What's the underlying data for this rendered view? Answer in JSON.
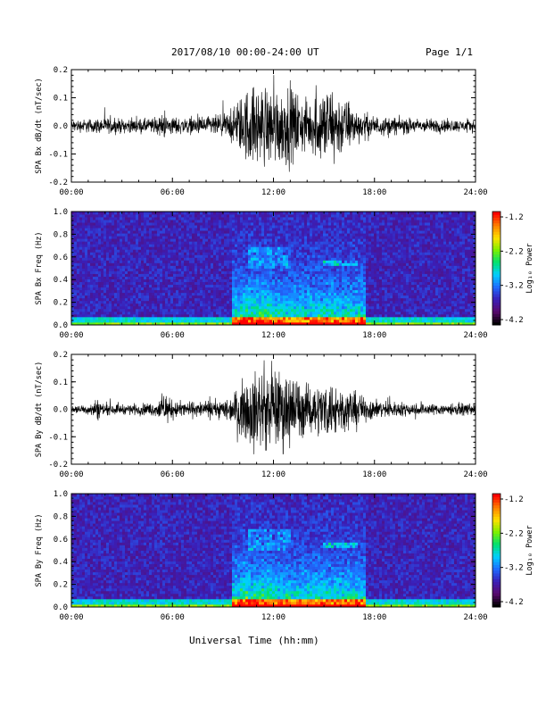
{
  "header": {
    "title": "2017/08/10  00:00-24:00 UT",
    "page": "Page 1/1"
  },
  "footer": {
    "xlabel": "Universal Time (hh:mm)"
  },
  "colors": {
    "background": "#ffffff",
    "axis": "#000000",
    "waveform": "#000000",
    "colormap": [
      "#000000",
      "#5a0a6e",
      "#3a1fb8",
      "#1f6cff",
      "#00d0ff",
      "#00e070",
      "#7cf000",
      "#ffe000",
      "#ff8000",
      "#ff0000"
    ]
  },
  "chart_data": [
    {
      "type": "line",
      "title": "",
      "ylabel": "SPA Bx dB/dt (nT/sec)",
      "xlabel": "",
      "xlim": [
        0,
        24
      ],
      "ylim": [
        -0.2,
        0.2
      ],
      "x_ticks": [
        "00:00",
        "06:00",
        "12:00",
        "18:00",
        "24:00"
      ],
      "y_ticks": [
        "-0.2",
        "-0.1",
        "0.0",
        "0.1",
        "0.2"
      ],
      "envelope": {
        "x": [
          0,
          1,
          2,
          3,
          4,
          5,
          5.5,
          6,
          7,
          8,
          9,
          9.5,
          10,
          10.5,
          11,
          12,
          13,
          13.5,
          14,
          15,
          15.5,
          16,
          17,
          18,
          19,
          20,
          21,
          22,
          23,
          24
        ],
        "amplitude": [
          0.03,
          0.035,
          0.04,
          0.035,
          0.035,
          0.04,
          0.06,
          0.045,
          0.04,
          0.045,
          0.06,
          0.08,
          0.14,
          0.2,
          0.2,
          0.2,
          0.2,
          0.16,
          0.12,
          0.2,
          0.2,
          0.16,
          0.08,
          0.05,
          0.045,
          0.04,
          0.035,
          0.035,
          0.03,
          0.03
        ]
      }
    },
    {
      "type": "heatmap",
      "title": "",
      "ylabel": "SPA Bx Freq (Hz)",
      "xlabel": "",
      "xlim": [
        0,
        24
      ],
      "ylim": [
        0.0,
        1.0
      ],
      "x_ticks": [
        "00:00",
        "06:00",
        "12:00",
        "18:00",
        "24:00"
      ],
      "y_ticks": [
        "0.0",
        "0.2",
        "0.4",
        "0.6",
        "0.8",
        "1.0"
      ],
      "colorbar": {
        "label": "Log₁₀ Power",
        "range": [
          -4.2,
          -1.2
        ],
        "ticks": [
          "-1.2",
          "-2.2",
          "-3.2",
          "-4.2"
        ]
      }
    },
    {
      "type": "line",
      "title": "",
      "ylabel": "SPA By dB/dt (nT/sec)",
      "xlabel": "",
      "xlim": [
        0,
        24
      ],
      "ylim": [
        -0.2,
        0.2
      ],
      "x_ticks": [
        "00:00",
        "06:00",
        "12:00",
        "18:00",
        "24:00"
      ],
      "y_ticks": [
        "-0.2",
        "-0.1",
        "0.0",
        "0.1",
        "0.2"
      ],
      "envelope": {
        "x": [
          0,
          1,
          1.5,
          2,
          3,
          4,
          5,
          5.5,
          6,
          7,
          8,
          9,
          9.5,
          10,
          10.5,
          11,
          12,
          13,
          13.5,
          14,
          15,
          15.5,
          16,
          17,
          18,
          19,
          20,
          21,
          22,
          23,
          24
        ],
        "amplitude": [
          0.02,
          0.025,
          0.06,
          0.03,
          0.025,
          0.03,
          0.035,
          0.08,
          0.045,
          0.04,
          0.04,
          0.05,
          0.07,
          0.12,
          0.18,
          0.2,
          0.2,
          0.2,
          0.16,
          0.12,
          0.14,
          0.15,
          0.12,
          0.08,
          0.05,
          0.04,
          0.035,
          0.03,
          0.03,
          0.03,
          0.03
        ]
      }
    },
    {
      "type": "heatmap",
      "title": "",
      "ylabel": "SPA By Freq (Hz)",
      "xlabel": "",
      "xlim": [
        0,
        24
      ],
      "ylim": [
        0.0,
        1.0
      ],
      "x_ticks": [
        "00:00",
        "06:00",
        "12:00",
        "18:00",
        "24:00"
      ],
      "y_ticks": [
        "0.0",
        "0.2",
        "0.4",
        "0.6",
        "0.8",
        "1.0"
      ],
      "colorbar": {
        "label": "Log₁₀ Power",
        "range": [
          -4.2,
          -1.2
        ],
        "ticks": [
          "-1.2",
          "-2.2",
          "-3.2",
          "-4.2"
        ]
      }
    }
  ]
}
